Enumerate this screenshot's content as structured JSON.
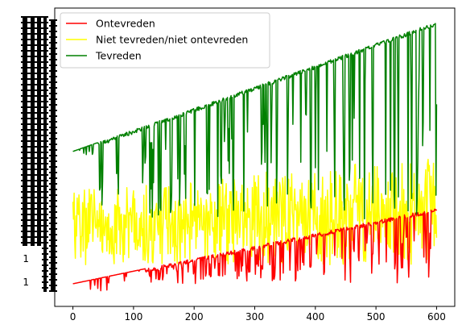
{
  "chart_data": {
    "type": "line",
    "title": "",
    "xlabel": "",
    "ylabel": "",
    "xlim": [
      -30,
      630
    ],
    "ylim": [
      0,
      1
    ],
    "x_ticks": [
      0,
      100,
      200,
      300,
      400,
      500,
      600
    ],
    "x_tick_labels": [
      "0",
      "100",
      "200",
      "300",
      "400",
      "500",
      "600"
    ],
    "y_tick_labels_visible": [
      "1",
      "1"
    ],
    "y_axis_note": "categorical y-axis with hundreds of overlapping tick labels rendered as dense black bars",
    "grid": false,
    "legend": {
      "placement": "top-left"
    },
    "x_range": [
      0,
      600
    ],
    "series": [
      {
        "name": "Ontevreden",
        "color": "#ff0000",
        "trend_start": 0.03,
        "trend_end": 0.31,
        "spike_direction": "down",
        "spike_floor": 0.03,
        "noise_starts_at": 120,
        "spike_probability": 0.55
      },
      {
        "name": "Niet tevreden/niet ontevreden",
        "color": "#ffff00",
        "band_start": [
          0.1,
          0.38
        ],
        "band_end": [
          0.1,
          0.5
        ],
        "spike_probability": 0.8
      },
      {
        "name": "Tevreden",
        "color": "#008000",
        "trend_start": 0.52,
        "trend_end": 1.0,
        "spike_direction": "down",
        "spike_floor": 0.27,
        "noise_starts_at": 40,
        "spike_probability": 0.45
      }
    ]
  }
}
